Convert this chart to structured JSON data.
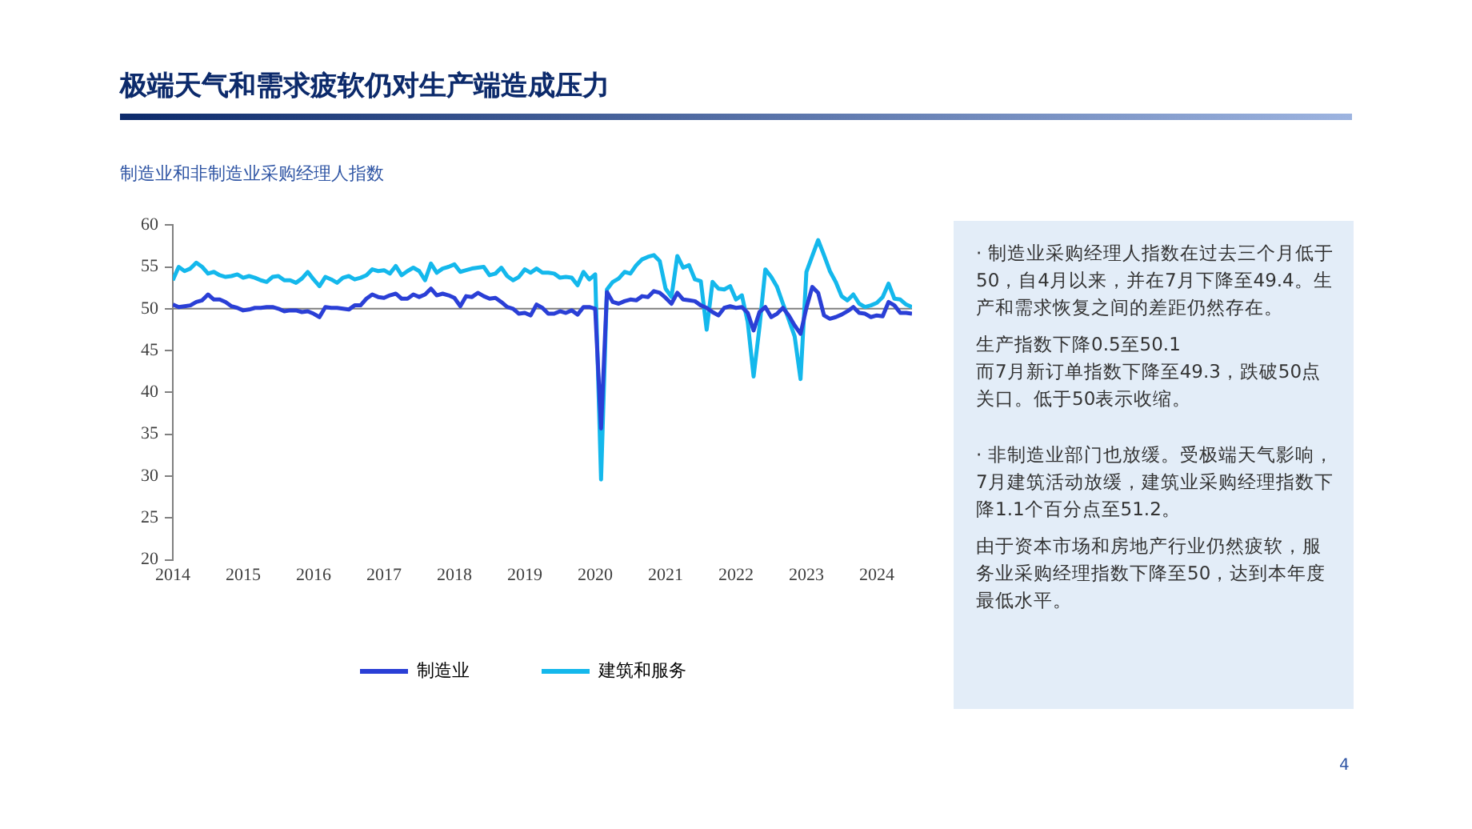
{
  "chart_data": {
    "type": "line",
    "title": "极端天气和需求疲软仍对生产端造成压力",
    "subtitle": "制造业和非制造业采购经理人指数",
    "x": [
      "2014-01",
      "2014-02",
      "2014-03",
      "2014-04",
      "2014-05",
      "2014-06",
      "2014-07",
      "2014-08",
      "2014-09",
      "2014-10",
      "2014-11",
      "2014-12",
      "2015-01",
      "2015-02",
      "2015-03",
      "2015-04",
      "2015-05",
      "2015-06",
      "2015-07",
      "2015-08",
      "2015-09",
      "2015-10",
      "2015-11",
      "2015-12",
      "2016-01",
      "2016-02",
      "2016-03",
      "2016-04",
      "2016-05",
      "2016-06",
      "2016-07",
      "2016-08",
      "2016-09",
      "2016-10",
      "2016-11",
      "2016-12",
      "2017-01",
      "2017-02",
      "2017-03",
      "2017-04",
      "2017-05",
      "2017-06",
      "2017-07",
      "2017-08",
      "2017-09",
      "2017-10",
      "2017-11",
      "2017-12",
      "2018-01",
      "2018-02",
      "2018-03",
      "2018-04",
      "2018-05",
      "2018-06",
      "2018-07",
      "2018-08",
      "2018-09",
      "2018-10",
      "2018-11",
      "2018-12",
      "2019-01",
      "2019-02",
      "2019-03",
      "2019-04",
      "2019-05",
      "2019-06",
      "2019-07",
      "2019-08",
      "2019-09",
      "2019-10",
      "2019-11",
      "2019-12",
      "2020-01",
      "2020-02",
      "2020-03",
      "2020-04",
      "2020-05",
      "2020-06",
      "2020-07",
      "2020-08",
      "2020-09",
      "2020-10",
      "2020-11",
      "2020-12",
      "2021-01",
      "2021-02",
      "2021-03",
      "2021-04",
      "2021-05",
      "2021-06",
      "2021-07",
      "2021-08",
      "2021-09",
      "2021-10",
      "2021-11",
      "2021-12",
      "2022-01",
      "2022-02",
      "2022-03",
      "2022-04",
      "2022-05",
      "2022-06",
      "2022-07",
      "2022-08",
      "2022-09",
      "2022-10",
      "2022-11",
      "2022-12",
      "2023-01",
      "2023-02",
      "2023-03",
      "2023-04",
      "2023-05",
      "2023-06",
      "2023-07",
      "2023-08",
      "2023-09",
      "2023-10",
      "2023-11",
      "2023-12",
      "2024-01",
      "2024-02",
      "2024-03",
      "2024-04",
      "2024-05",
      "2024-06",
      "2024-07"
    ],
    "series": [
      {
        "name": "制造业",
        "color": "#2a3fd6",
        "values": [
          50.5,
          50.2,
          50.3,
          50.4,
          50.8,
          51.0,
          51.7,
          51.1,
          51.1,
          50.8,
          50.3,
          50.1,
          49.8,
          49.9,
          50.1,
          50.1,
          50.2,
          50.2,
          50.0,
          49.7,
          49.8,
          49.8,
          49.6,
          49.7,
          49.4,
          49.0,
          50.2,
          50.1,
          50.1,
          50.0,
          49.9,
          50.4,
          50.4,
          51.2,
          51.7,
          51.4,
          51.3,
          51.6,
          51.8,
          51.2,
          51.2,
          51.7,
          51.4,
          51.7,
          52.4,
          51.6,
          51.8,
          51.6,
          51.3,
          50.3,
          51.5,
          51.4,
          51.9,
          51.5,
          51.2,
          51.3,
          50.8,
          50.2,
          50.0,
          49.4,
          49.5,
          49.2,
          50.5,
          50.1,
          49.4,
          49.4,
          49.7,
          49.5,
          49.8,
          49.3,
          50.2,
          50.2,
          50.0,
          35.7,
          52.0,
          50.8,
          50.6,
          50.9,
          51.1,
          51.0,
          51.5,
          51.4,
          52.1,
          51.9,
          51.3,
          50.6,
          51.9,
          51.1,
          51.0,
          50.9,
          50.4,
          50.1,
          49.6,
          49.2,
          50.1,
          50.3,
          50.1,
          50.2,
          49.5,
          47.4,
          49.6,
          50.2,
          49.0,
          49.4,
          50.1,
          49.2,
          48.0,
          47.0,
          50.1,
          52.6,
          51.9,
          49.2,
          48.8,
          49.0,
          49.3,
          49.7,
          50.2,
          49.5,
          49.4,
          49.0,
          49.2,
          49.1,
          50.8,
          50.4,
          49.5,
          49.5,
          49.4
        ]
      },
      {
        "name": "建筑和服务",
        "color": "#14b8ec",
        "values": [
          53.4,
          55.0,
          54.5,
          54.8,
          55.5,
          55.0,
          54.2,
          54.4,
          54.0,
          53.8,
          53.9,
          54.1,
          53.7,
          53.9,
          53.7,
          53.4,
          53.2,
          53.8,
          53.9,
          53.4,
          53.4,
          53.1,
          53.6,
          54.4,
          53.5,
          52.7,
          53.8,
          53.5,
          53.1,
          53.7,
          53.9,
          53.5,
          53.7,
          54.0,
          54.7,
          54.5,
          54.6,
          54.2,
          55.1,
          54.0,
          54.5,
          54.9,
          54.5,
          53.4,
          55.4,
          54.3,
          54.8,
          55.0,
          55.3,
          54.4,
          54.6,
          54.8,
          54.9,
          55.0,
          54.0,
          54.2,
          54.9,
          53.9,
          53.4,
          53.8,
          54.7,
          54.3,
          54.8,
          54.3,
          54.3,
          54.2,
          53.7,
          53.8,
          53.7,
          52.8,
          54.4,
          53.5,
          54.1,
          29.6,
          52.3,
          53.2,
          53.6,
          54.4,
          54.2,
          55.2,
          55.9,
          56.2,
          56.4,
          55.7,
          52.4,
          51.4,
          56.3,
          54.9,
          55.2,
          53.5,
          53.3,
          47.5,
          53.2,
          52.4,
          52.3,
          52.7,
          51.1,
          51.6,
          48.4,
          41.9,
          47.8,
          54.7,
          53.8,
          52.6,
          50.6,
          48.7,
          46.7,
          41.6,
          54.4,
          56.3,
          58.2,
          56.4,
          54.5,
          53.2,
          51.5,
          51.0,
          51.7,
          50.6,
          50.2,
          50.4,
          50.7,
          51.4,
          53.0,
          51.2,
          51.1,
          50.5,
          50.2
        ]
      }
    ],
    "xlim": [
      "2014-01",
      "2024-07"
    ],
    "xticks": [
      "2014",
      "2015",
      "2016",
      "2017",
      "2018",
      "2019",
      "2020",
      "2021",
      "2022",
      "2023",
      "2024"
    ],
    "ylim": [
      20,
      60
    ],
    "yticks": [
      20,
      25,
      30,
      35,
      40,
      45,
      50,
      55,
      60
    ],
    "ref_lines": [
      {
        "axis": "y",
        "value": 50,
        "color": "#808080"
      }
    ],
    "grid": false,
    "legend": "bottom",
    "marker": "none",
    "line_style": "solid",
    "annotations": [
      "· 制造业采购经理人指数在过去三个月低于50，自4月以来，并在7月下降至49.4。生产和需求恢复之间的差距仍然存在。",
      "生产指数下降0.5至50.1",
      "而7月新订单指数下降至49.3，跌破50点关口。低于50表示收缩。",
      "· 非制造业部门也放缓。受极端天气影响，7月建筑活动放缓，建筑业采购经理指数下降1.1个百分点至51.2。",
      "由于资本市场和房地产行业仍然疲软，服务业采购经理指数下降至50，达到本年度最低水平。",
      "4"
    ]
  }
}
